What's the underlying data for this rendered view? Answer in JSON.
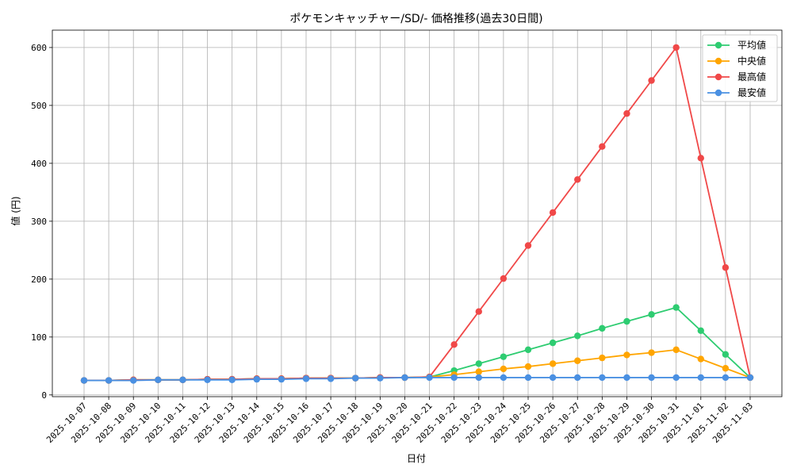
{
  "chart_data": {
    "type": "line",
    "title": "ポケモンキャッチャー/SD/- 価格推移(過去30日間)",
    "xlabel": "日付",
    "ylabel": "値 (円)",
    "x": [
      "2025-10-07",
      "2025-10-08",
      "2025-10-09",
      "2025-10-10",
      "2025-10-11",
      "2025-10-12",
      "2025-10-13",
      "2025-10-14",
      "2025-10-15",
      "2025-10-16",
      "2025-10-17",
      "2025-10-18",
      "2025-10-19",
      "2025-10-20",
      "2025-10-21",
      "2025-10-22",
      "2025-10-23",
      "2025-10-24",
      "2025-10-25",
      "2025-10-26",
      "2025-10-27",
      "2025-10-28",
      "2025-10-29",
      "2025-10-30",
      "2025-10-31",
      "2025-11-01",
      "2025-11-02",
      "2025-11-03"
    ],
    "ylim": [
      -3,
      630
    ],
    "yticks": [
      0,
      100,
      200,
      300,
      400,
      500,
      600
    ],
    "grid": true,
    "legend_position": "top-right",
    "series": [
      {
        "name": "平均値",
        "color": "#2ecc71",
        "values": [
          25,
          25,
          26,
          26,
          26,
          27,
          27,
          28,
          28,
          29,
          29,
          29,
          30,
          30,
          31,
          42,
          54,
          66,
          78,
          90,
          102,
          115,
          127,
          139,
          151,
          111,
          70,
          30
        ]
      },
      {
        "name": "中央値",
        "color": "#ffa500",
        "values": [
          25,
          25,
          26,
          26,
          26,
          27,
          27,
          28,
          28,
          29,
          29,
          29,
          30,
          30,
          31,
          35,
          40,
          45,
          49,
          54,
          59,
          64,
          69,
          73,
          78,
          62,
          46,
          30
        ]
      },
      {
        "name": "最高値",
        "color": "#f04848",
        "values": [
          25,
          25,
          26,
          26,
          26,
          27,
          27,
          28,
          28,
          29,
          29,
          29,
          30,
          30,
          31,
          87,
          144,
          201,
          258,
          315,
          372,
          429,
          486,
          543,
          600,
          409,
          220,
          30
        ]
      },
      {
        "name": "最安値",
        "color": "#4a90e2",
        "values": [
          25,
          25,
          25,
          26,
          26,
          26,
          26,
          27,
          27,
          28,
          28,
          29,
          29,
          30,
          30,
          30,
          30,
          30,
          30,
          30,
          30,
          30,
          30,
          30,
          30,
          30,
          30,
          30
        ]
      }
    ]
  }
}
